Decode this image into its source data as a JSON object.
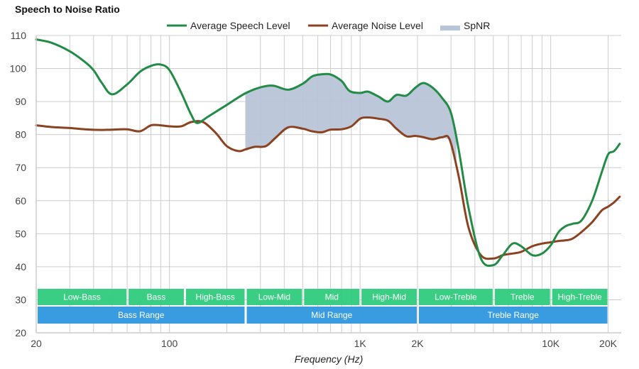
{
  "chart_data": {
    "type": "line",
    "title": "Speech to Noise Ratio",
    "xlabel": "Frequency (Hz)",
    "ylabel": "",
    "xscale": "log",
    "xlim": [
      20,
      23000
    ],
    "ylim": [
      20,
      110
    ],
    "grid": true,
    "legend_position": "top",
    "yticks": [
      20,
      30,
      40,
      50,
      60,
      70,
      80,
      90,
      100,
      110
    ],
    "xticks": [
      {
        "value": 20,
        "label": "20"
      },
      {
        "value": 100,
        "label": "100"
      },
      {
        "value": 1000,
        "label": "1K"
      },
      {
        "value": 2000,
        "label": "2K"
      },
      {
        "value": 10000,
        "label": "10K"
      },
      {
        "value": 20000,
        "label": "20K"
      }
    ],
    "x_minor_grid": [
      30,
      40,
      50,
      60,
      70,
      80,
      90,
      200,
      300,
      400,
      500,
      600,
      700,
      800,
      900,
      3000,
      4000,
      5000,
      6000,
      7000,
      8000,
      9000
    ],
    "series": [
      {
        "name": "Average Speech Level",
        "color": "#228B45",
        "x": [
          20,
          24,
          30,
          36,
          40,
          44,
          50,
          60,
          70,
          80,
          90,
          100,
          115,
          130,
          140,
          160,
          200,
          250,
          300,
          350,
          420,
          500,
          560,
          620,
          700,
          800,
          880,
          1000,
          1100,
          1250,
          1400,
          1550,
          1750,
          1950,
          2150,
          2400,
          2700,
          3000,
          3300,
          3700,
          4300,
          5000,
          5600,
          6300,
          7000,
          8000,
          9000,
          10000,
          11000,
          12000,
          13000,
          14500,
          16500,
          18500,
          20000,
          21500,
          23000
        ],
        "values": [
          108.8,
          107.8,
          105.2,
          102,
          99.5,
          95.8,
          92.2,
          95.2,
          99,
          100.8,
          101.2,
          99.5,
          92.8,
          86,
          83.5,
          85.5,
          89,
          92.5,
          94.3,
          94.8,
          93.6,
          95.4,
          97.6,
          98.2,
          98.2,
          96.2,
          93.2,
          92.6,
          93,
          91.5,
          90,
          92,
          91.8,
          94.2,
          95.6,
          94.2,
          91,
          86.5,
          75,
          58,
          42.5,
          40.5,
          43.5,
          47,
          46.2,
          43.5,
          44,
          46.5,
          50.5,
          52.3,
          53,
          54,
          60,
          68.5,
          74,
          75,
          77.2
        ]
      },
      {
        "name": "Average Noise Level",
        "color": "#8B4220",
        "x": [
          20,
          24,
          30,
          36,
          44,
          50,
          60,
          70,
          80,
          90,
          100,
          115,
          130,
          150,
          175,
          200,
          230,
          250,
          280,
          320,
          360,
          420,
          500,
          560,
          630,
          700,
          800,
          900,
          1000,
          1100,
          1250,
          1400,
          1550,
          1750,
          1950,
          2150,
          2400,
          2700,
          2950,
          3300,
          3700,
          4300,
          5000,
          5600,
          6300,
          7000,
          8000,
          9000,
          10000,
          11000,
          12000,
          13000,
          14500,
          16500,
          18500,
          20000,
          21500,
          23000
        ],
        "values": [
          82.8,
          82.3,
          82,
          81.6,
          81.4,
          81.5,
          81.6,
          81,
          82.8,
          82.8,
          82.5,
          82.5,
          83.8,
          83.8,
          80.5,
          76.5,
          75,
          75.5,
          76.3,
          76.5,
          79,
          82.2,
          81.8,
          81,
          80.7,
          81.5,
          81.6,
          82.5,
          84.8,
          85.2,
          84.8,
          84.2,
          81.8,
          79.5,
          79.6,
          79.2,
          78.6,
          79.2,
          78.5,
          67,
          52,
          43.5,
          42.5,
          43.5,
          44,
          44.5,
          46.2,
          47,
          47.4,
          47.8,
          48,
          48.5,
          50.5,
          53.5,
          57,
          58.2,
          59.5,
          61.2
        ]
      },
      {
        "name": "SpNR",
        "color": "#B8C4D8",
        "type": "area",
        "x_range": [
          250,
          3200
        ]
      }
    ],
    "bands": [
      {
        "label": "Low-Bass",
        "from": 20,
        "to": 60,
        "row": 1
      },
      {
        "label": "Bass",
        "from": 60,
        "to": 120,
        "row": 1
      },
      {
        "label": "High-Bass",
        "from": 120,
        "to": 250,
        "row": 1
      },
      {
        "label": "Low-Mid",
        "from": 250,
        "to": 500,
        "row": 1
      },
      {
        "label": "Mid",
        "from": 500,
        "to": 1000,
        "row": 1
      },
      {
        "label": "High-Mid",
        "from": 1000,
        "to": 2000,
        "row": 1
      },
      {
        "label": "Low-Treble",
        "from": 2000,
        "to": 5000,
        "row": 1
      },
      {
        "label": "Treble",
        "from": 5000,
        "to": 10000,
        "row": 1
      },
      {
        "label": "High-Treble",
        "from": 10000,
        "to": 20000,
        "row": 1
      },
      {
        "label": "Bass Range",
        "from": 20,
        "to": 250,
        "row": 2
      },
      {
        "label": "Mid Range",
        "from": 250,
        "to": 2000,
        "row": 2
      },
      {
        "label": "Treble Range",
        "from": 2000,
        "to": 20000,
        "row": 2
      }
    ],
    "band_colors": {
      "row1": "#33CC7F",
      "row2": "#3399E0"
    }
  }
}
